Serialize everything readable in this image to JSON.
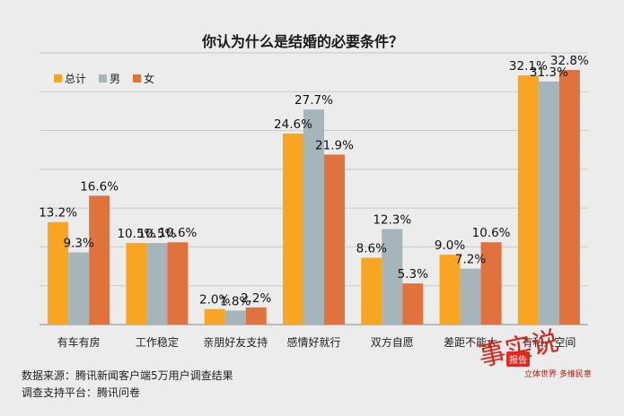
{
  "chart_data": {
    "type": "bar",
    "title": "你认为什么是结婚的必要条件？",
    "categories": [
      "有车有房",
      "工作稳定",
      "亲朋好友支持",
      "感情好就行",
      "双方自愿",
      "差距不能大",
      "有私人空间"
    ],
    "series": [
      {
        "name": "总计",
        "color": "#f7a522",
        "values": [
          13.2,
          10.5,
          2.0,
          24.6,
          8.6,
          9.0,
          32.1
        ]
      },
      {
        "name": "男",
        "color": "#a5b5b9",
        "values": [
          9.3,
          10.5,
          1.8,
          27.7,
          12.3,
          7.2,
          31.3
        ]
      },
      {
        "name": "女",
        "color": "#e0733d",
        "values": [
          16.6,
          10.6,
          2.2,
          21.9,
          5.3,
          10.6,
          32.8
        ]
      }
    ],
    "value_labels": [
      [
        "13.2%",
        "10.5%",
        "2.0%",
        "24.6%",
        "8.6%",
        "9.0%",
        "32.1%"
      ],
      [
        "9.3%",
        "10.5%",
        "1.8%",
        "27.7%",
        "12.3%",
        "7.2%",
        "31.3%"
      ],
      [
        "16.6%",
        "10.6%",
        "2.2%",
        "21.9%",
        "5.3%",
        "10.6%",
        "32.8%"
      ]
    ],
    "ylim": [
      0,
      35
    ],
    "grid": true,
    "legend": "top-left"
  },
  "footer": {
    "source": "数据来源：腾讯新闻客户端5万用户调查结果",
    "platform": "调查支持平台：腾讯问卷"
  },
  "logo": {
    "seal": "报告",
    "tagline": "立体世界 多维民意"
  }
}
